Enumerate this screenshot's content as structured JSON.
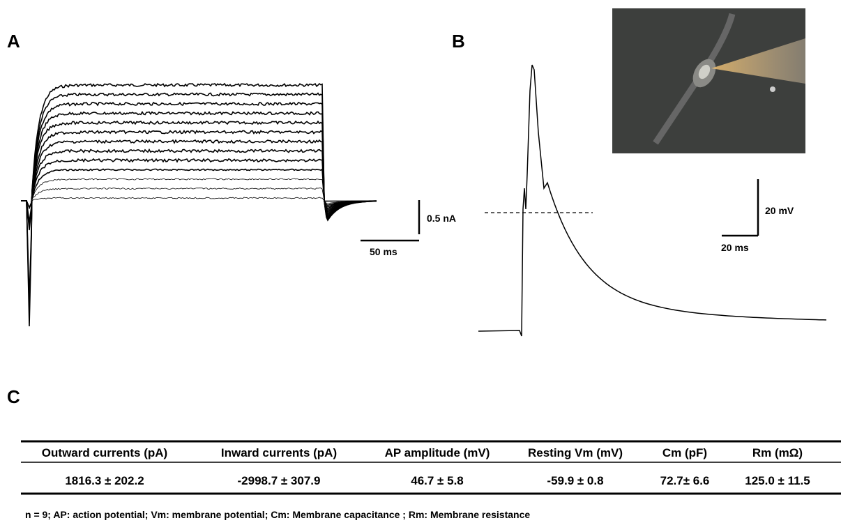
{
  "panels": {
    "a": {
      "label": "A",
      "scale_current": "0.5 nA",
      "scale_time": "50 ms"
    },
    "b": {
      "label": "B",
      "scale_voltage": "20 mV",
      "scale_time": "20 ms"
    },
    "c": {
      "label": "C"
    }
  },
  "table": {
    "header": [
      "Outward currents (pA)",
      "Inward currents (pA)",
      "AP amplitude  (mV)",
      "Resting Vm (mV)",
      "Cm (pF)",
      "Rm (mΩ)"
    ],
    "rows": [
      [
        "1816.3 ± 202.2",
        "-2998.7 ± 307.9",
        "46.7 ± 5.8",
        "-59.9 ± 0.8",
        "72.7± 6.6",
        "125.0 ± 11.5"
      ]
    ]
  },
  "footnote": "n = 9; AP: action potential; Vm: membrane potential; Cm: Membrane capacitance ; Rm: Membrane resistance"
}
